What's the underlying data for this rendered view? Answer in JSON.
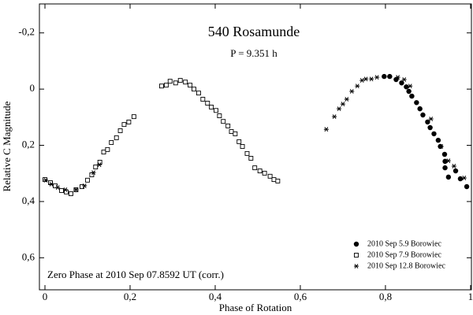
{
  "chart_data": {
    "type": "scatter",
    "title": "540 Rosamunde",
    "subtitle": "P = 9.351 h",
    "annotation": "Zero Phase at 2010 Sep 07.8592 UT (corr.)",
    "x_label": "Phase of Rotation",
    "y_label": "Relative C Magnitude",
    "xlim": [
      -0.013,
      1.002
    ],
    "ylim": [
      -0.303,
      0.714
    ],
    "y_inverted": true,
    "xticks": [
      0,
      {
        "value": 0.2,
        "label": "0,2"
      },
      {
        "value": 0.4,
        "label": "0,4"
      },
      {
        "value": 0.6,
        "label": "0,6"
      },
      {
        "value": 0.8,
        "label": "0,8"
      },
      1
    ],
    "yticks": [
      {
        "value": -0.2,
        "label": "-0,2"
      },
      0,
      {
        "value": 0.2,
        "label": "0,2"
      },
      {
        "value": 0.4,
        "label": "0,4"
      },
      {
        "value": 0.6,
        "label": "0,6"
      }
    ],
    "legend": "lower right",
    "series": [
      {
        "name": "2010 Sep 5.9 Borowiec",
        "color": "#000000",
        "marker": "circle",
        "x": [
          0.797,
          0.81,
          0.825,
          0.838,
          0.849,
          0.855,
          0.862,
          0.873,
          0.881,
          0.888,
          0.899,
          0.905,
          0.914,
          0.924,
          0.929,
          0.939,
          0.94,
          0.94,
          0.948,
          0.965,
          0.976,
          0.991
        ],
        "values": [
          -0.045,
          -0.045,
          -0.034,
          -0.022,
          -0.008,
          0.008,
          0.025,
          0.048,
          0.07,
          0.092,
          0.117,
          0.137,
          0.159,
          0.182,
          0.204,
          0.232,
          0.257,
          0.28,
          0.313,
          0.291,
          0.319,
          0.347
        ]
      },
      {
        "name": "2010 Sep 7.9 Borowiec",
        "color": "#000000",
        "marker": "square",
        "x": [
          0.0,
          0.013,
          0.024,
          0.039,
          0.05,
          0.061,
          0.073,
          0.087,
          0.1,
          0.11,
          0.119,
          0.129,
          0.138,
          0.147,
          0.156,
          0.168,
          0.177,
          0.186,
          0.197,
          0.209,
          0.274,
          0.285,
          0.294,
          0.307,
          0.318,
          0.33,
          0.341,
          0.35,
          0.361,
          0.371,
          0.382,
          0.391,
          0.402,
          0.41,
          0.419,
          0.43,
          0.438,
          0.447,
          0.456,
          0.464,
          0.475,
          0.484,
          0.493,
          0.505,
          0.516,
          0.529,
          0.538,
          0.547
        ],
        "values": [
          0.322,
          0.333,
          0.344,
          0.361,
          0.366,
          0.372,
          0.358,
          0.347,
          0.324,
          0.305,
          0.277,
          0.26,
          0.224,
          0.215,
          0.19,
          0.173,
          0.148,
          0.126,
          0.117,
          0.098,
          -0.011,
          -0.014,
          -0.028,
          -0.022,
          -0.031,
          -0.025,
          -0.014,
          0.0,
          0.014,
          0.036,
          0.05,
          0.064,
          0.076,
          0.095,
          0.115,
          0.131,
          0.151,
          0.159,
          0.187,
          0.204,
          0.229,
          0.246,
          0.28,
          0.291,
          0.299,
          0.31,
          0.322,
          0.327
        ]
      },
      {
        "name": "2010 Sep 12.8 Borowiec",
        "color": "#000000",
        "marker": "asterisk",
        "x": [
          0.002,
          0.015,
          0.03,
          0.048,
          0.073,
          0.093,
          0.114,
          0.128,
          0.661,
          0.68,
          0.691,
          0.7,
          0.709,
          0.721,
          0.734,
          0.745,
          0.754,
          0.767,
          0.78,
          0.829,
          0.844,
          0.858,
          0.907,
          0.931,
          0.948,
          0.961,
          0.985
        ],
        "values": [
          0.324,
          0.338,
          0.35,
          0.358,
          0.358,
          0.344,
          0.297,
          0.269,
          0.143,
          0.098,
          0.07,
          0.053,
          0.036,
          0.008,
          -0.011,
          -0.031,
          -0.036,
          -0.036,
          -0.042,
          -0.042,
          -0.034,
          -0.011,
          0.106,
          0.204,
          0.255,
          0.274,
          0.316
        ]
      }
    ]
  }
}
